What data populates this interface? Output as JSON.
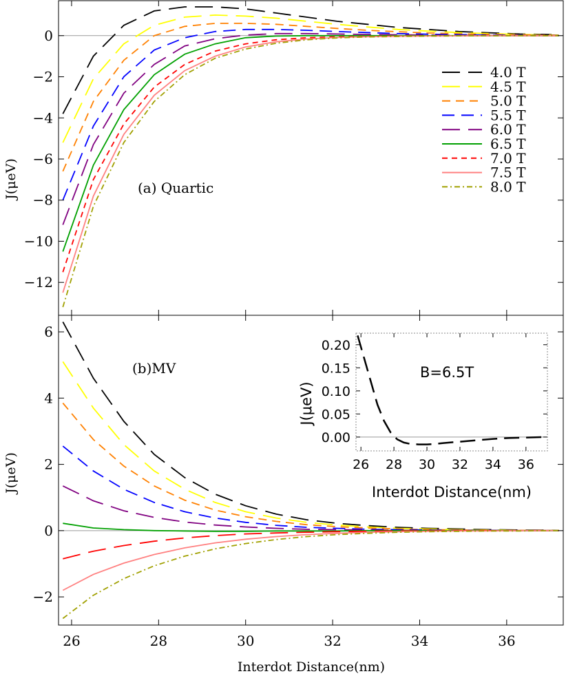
{
  "chart_data": [
    {
      "type": "line",
      "panel": "a",
      "annotation": "(a) Quartic",
      "ylabel": "J(μeV)",
      "xlabel": "",
      "xlim": [
        25.7,
        37.3
      ],
      "ylim": [
        -13.6,
        1.7
      ],
      "xticks": [
        26,
        28,
        30,
        32,
        34,
        36
      ],
      "yticks": [
        -12,
        -10,
        -8,
        -6,
        -4,
        -2,
        0
      ],
      "legend_position": "right",
      "x": [
        25.8,
        26.5,
        27.2,
        27.9,
        28.6,
        29.3,
        30.0,
        30.7,
        31.4,
        32.1,
        32.8,
        33.5,
        34.2,
        34.9,
        35.6,
        36.3,
        37.2
      ],
      "series": [
        {
          "name": "4.0 T",
          "color": "#000000",
          "dash": "long",
          "values": [
            -3.8,
            -1.0,
            0.5,
            1.2,
            1.4,
            1.4,
            1.3,
            1.1,
            0.9,
            0.7,
            0.55,
            0.4,
            0.3,
            0.2,
            0.14,
            0.08,
            0.05
          ]
        },
        {
          "name": "4.5 T",
          "color": "#ffff00",
          "dash": "long",
          "values": [
            -5.2,
            -2.1,
            -0.4,
            0.5,
            0.9,
            1.0,
            0.95,
            0.85,
            0.7,
            0.55,
            0.42,
            0.3,
            0.22,
            0.15,
            0.1,
            0.06,
            0.03
          ]
        },
        {
          "name": "5.0 T",
          "color": "#ff8000",
          "dash": "medium",
          "values": [
            -6.6,
            -3.2,
            -1.2,
            0.0,
            0.45,
            0.6,
            0.6,
            0.55,
            0.45,
            0.35,
            0.26,
            0.19,
            0.13,
            0.09,
            0.06,
            0.04,
            0.02
          ]
        },
        {
          "name": "5.5 T",
          "color": "#0000ff",
          "dash": "medium-long",
          "values": [
            -8.0,
            -4.4,
            -2.0,
            -0.7,
            -0.1,
            0.2,
            0.3,
            0.3,
            0.26,
            0.2,
            0.15,
            0.1,
            0.07,
            0.05,
            0.03,
            0.02,
            0.01
          ]
        },
        {
          "name": "6.0 T",
          "color": "#800080",
          "dash": "long",
          "values": [
            -9.2,
            -5.3,
            -2.8,
            -1.4,
            -0.5,
            -0.15,
            0.03,
            0.1,
            0.1,
            0.08,
            0.06,
            0.04,
            0.03,
            0.02,
            0.01,
            0.01,
            0.0
          ]
        },
        {
          "name": "6.5 T",
          "color": "#00a000",
          "dash": "solid",
          "values": [
            -10.5,
            -6.3,
            -3.6,
            -1.9,
            -0.9,
            -0.4,
            -0.1,
            -0.02,
            0.0,
            0.0,
            0.0,
            0.0,
            0.0,
            0.0,
            0.0,
            0.0,
            0.0
          ]
        },
        {
          "name": "7.0 T",
          "color": "#ff0000",
          "dash": "short",
          "values": [
            -11.5,
            -7.0,
            -4.3,
            -2.5,
            -1.4,
            -0.75,
            -0.4,
            -0.2,
            -0.1,
            -0.06,
            -0.04,
            -0.02,
            -0.01,
            -0.01,
            0.0,
            0.0,
            0.0
          ]
        },
        {
          "name": "7.5 T",
          "color": "#ff8080",
          "dash": "solid",
          "values": [
            -12.5,
            -7.8,
            -4.8,
            -2.9,
            -1.7,
            -1.0,
            -0.55,
            -0.3,
            -0.16,
            -0.09,
            -0.05,
            -0.03,
            -0.02,
            -0.01,
            0.0,
            0.0,
            0.0
          ]
        },
        {
          "name": "8.0 T",
          "color": "#a0a000",
          "dash": "dashdot",
          "values": [
            -13.2,
            -8.3,
            -5.2,
            -3.2,
            -1.9,
            -1.1,
            -0.65,
            -0.37,
            -0.2,
            -0.11,
            -0.06,
            -0.04,
            -0.02,
            -0.01,
            -0.01,
            0.0,
            0.0
          ]
        }
      ]
    },
    {
      "type": "line",
      "panel": "b",
      "annotation": "(b)MV",
      "ylabel": "J(μeV)",
      "xlabel": "Interdot Distance(nm)",
      "xlim": [
        25.7,
        37.3
      ],
      "ylim": [
        -2.85,
        6.5
      ],
      "xticks": [
        26,
        28,
        30,
        32,
        34,
        36
      ],
      "yticks": [
        -2,
        0,
        2,
        4,
        6
      ],
      "x": [
        25.8,
        26.5,
        27.2,
        27.9,
        28.6,
        29.3,
        30.0,
        30.7,
        31.4,
        32.1,
        32.8,
        33.5,
        34.2,
        34.9,
        35.6,
        36.3,
        37.2
      ],
      "series": [
        {
          "name": "4.0 T",
          "color": "#000000",
          "dash": "long",
          "values": [
            6.3,
            4.6,
            3.3,
            2.3,
            1.6,
            1.1,
            0.75,
            0.5,
            0.33,
            0.22,
            0.15,
            0.1,
            0.07,
            0.05,
            0.03,
            0.02,
            0.01
          ]
        },
        {
          "name": "4.5 T",
          "color": "#ffff00",
          "dash": "long",
          "values": [
            5.1,
            3.7,
            2.6,
            1.8,
            1.25,
            0.85,
            0.57,
            0.38,
            0.25,
            0.17,
            0.11,
            0.07,
            0.05,
            0.03,
            0.02,
            0.01,
            0.01
          ]
        },
        {
          "name": "5.0 T",
          "color": "#ff8000",
          "dash": "medium",
          "values": [
            3.85,
            2.75,
            1.95,
            1.35,
            0.92,
            0.62,
            0.42,
            0.28,
            0.18,
            0.12,
            0.08,
            0.05,
            0.03,
            0.02,
            0.01,
            0.01,
            0.0
          ]
        },
        {
          "name": "5.5 T",
          "color": "#0000ff",
          "dash": "medium-long",
          "values": [
            2.55,
            1.8,
            1.25,
            0.85,
            0.57,
            0.38,
            0.25,
            0.16,
            0.1,
            0.07,
            0.04,
            0.03,
            0.02,
            0.01,
            0.01,
            0.0,
            0.0
          ]
        },
        {
          "name": "6.0 T",
          "color": "#800080",
          "dash": "long",
          "values": [
            1.35,
            0.9,
            0.6,
            0.4,
            0.26,
            0.17,
            0.11,
            0.07,
            0.04,
            0.03,
            0.02,
            0.01,
            0.01,
            0.0,
            0.0,
            0.0,
            0.0
          ]
        },
        {
          "name": "6.5 T",
          "color": "#00a000",
          "dash": "solid",
          "values": [
            0.22,
            0.08,
            0.03,
            0.0,
            -0.01,
            -0.02,
            -0.02,
            -0.01,
            -0.01,
            -0.01,
            0.0,
            0.0,
            0.0,
            0.0,
            0.0,
            0.0,
            0.0
          ]
        },
        {
          "name": "7.0 T",
          "color": "#ff0000",
          "dash": "long",
          "values": [
            -0.85,
            -0.62,
            -0.45,
            -0.32,
            -0.22,
            -0.15,
            -0.1,
            -0.07,
            -0.05,
            -0.03,
            -0.02,
            -0.01,
            -0.01,
            0.0,
            0.0,
            0.0,
            0.0
          ]
        },
        {
          "name": "7.5 T",
          "color": "#ff8080",
          "dash": "solid",
          "values": [
            -1.8,
            -1.32,
            -0.98,
            -0.72,
            -0.52,
            -0.37,
            -0.26,
            -0.18,
            -0.12,
            -0.08,
            -0.05,
            -0.03,
            -0.02,
            -0.01,
            -0.01,
            0.0,
            0.0
          ]
        },
        {
          "name": "8.0 T",
          "color": "#a0a000",
          "dash": "dashdot",
          "values": [
            -2.65,
            -1.95,
            -1.45,
            -1.06,
            -0.77,
            -0.55,
            -0.39,
            -0.27,
            -0.18,
            -0.12,
            -0.08,
            -0.05,
            -0.03,
            -0.02,
            -0.01,
            -0.01,
            0.0
          ]
        }
      ]
    },
    {
      "type": "line",
      "panel": "inset",
      "annotation": "B=6.5T",
      "ylabel": "J(μeV)",
      "xlabel": "Interdot Distance(nm)",
      "xlim": [
        25.7,
        37.3
      ],
      "ylim": [
        -0.03,
        0.225
      ],
      "xticks": [
        26,
        28,
        30,
        32,
        34,
        36
      ],
      "yticks": [
        "0.00",
        "0.05",
        "0.10",
        "0.15",
        "0.20"
      ],
      "series": [
        {
          "name": "",
          "color": "#000000",
          "dash": "long",
          "x": [
            25.8,
            26.2,
            26.6,
            27.0,
            27.4,
            27.8,
            28.2,
            28.6,
            29.0,
            29.5,
            30.0,
            30.5,
            31.0,
            32.0,
            33.0,
            34.0,
            35.0,
            36.0,
            37.2
          ],
          "values": [
            0.22,
            0.17,
            0.12,
            0.07,
            0.035,
            0.01,
            -0.005,
            -0.012,
            -0.015,
            -0.016,
            -0.016,
            -0.015,
            -0.013,
            -0.01,
            -0.007,
            -0.004,
            -0.002,
            -0.001,
            0.0
          ]
        }
      ]
    }
  ]
}
